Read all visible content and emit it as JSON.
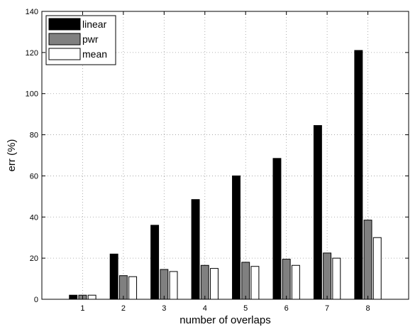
{
  "chart_data": {
    "type": "bar",
    "title": "",
    "xlabel": "number of overlaps",
    "ylabel": "err (%)",
    "categories": [
      "1",
      "2",
      "3",
      "4",
      "5",
      "6",
      "7",
      "8"
    ],
    "ylim": [
      0,
      140
    ],
    "yticks": [
      0,
      20,
      40,
      60,
      80,
      100,
      120,
      140
    ],
    "grid": true,
    "legend_position": "top-left",
    "series": [
      {
        "name": "linear",
        "color": "#000000",
        "values": [
          2,
          22,
          36,
          48.5,
          60,
          68.5,
          84.5,
          121
        ]
      },
      {
        "name": "pwr",
        "color": "#808080",
        "values": [
          2,
          11.5,
          14.5,
          16.5,
          18,
          19.5,
          22.5,
          38.5
        ]
      },
      {
        "name": "mean",
        "color": "#ffffff",
        "values": [
          2,
          11,
          13.5,
          15,
          16,
          16.5,
          20,
          30
        ]
      }
    ]
  }
}
